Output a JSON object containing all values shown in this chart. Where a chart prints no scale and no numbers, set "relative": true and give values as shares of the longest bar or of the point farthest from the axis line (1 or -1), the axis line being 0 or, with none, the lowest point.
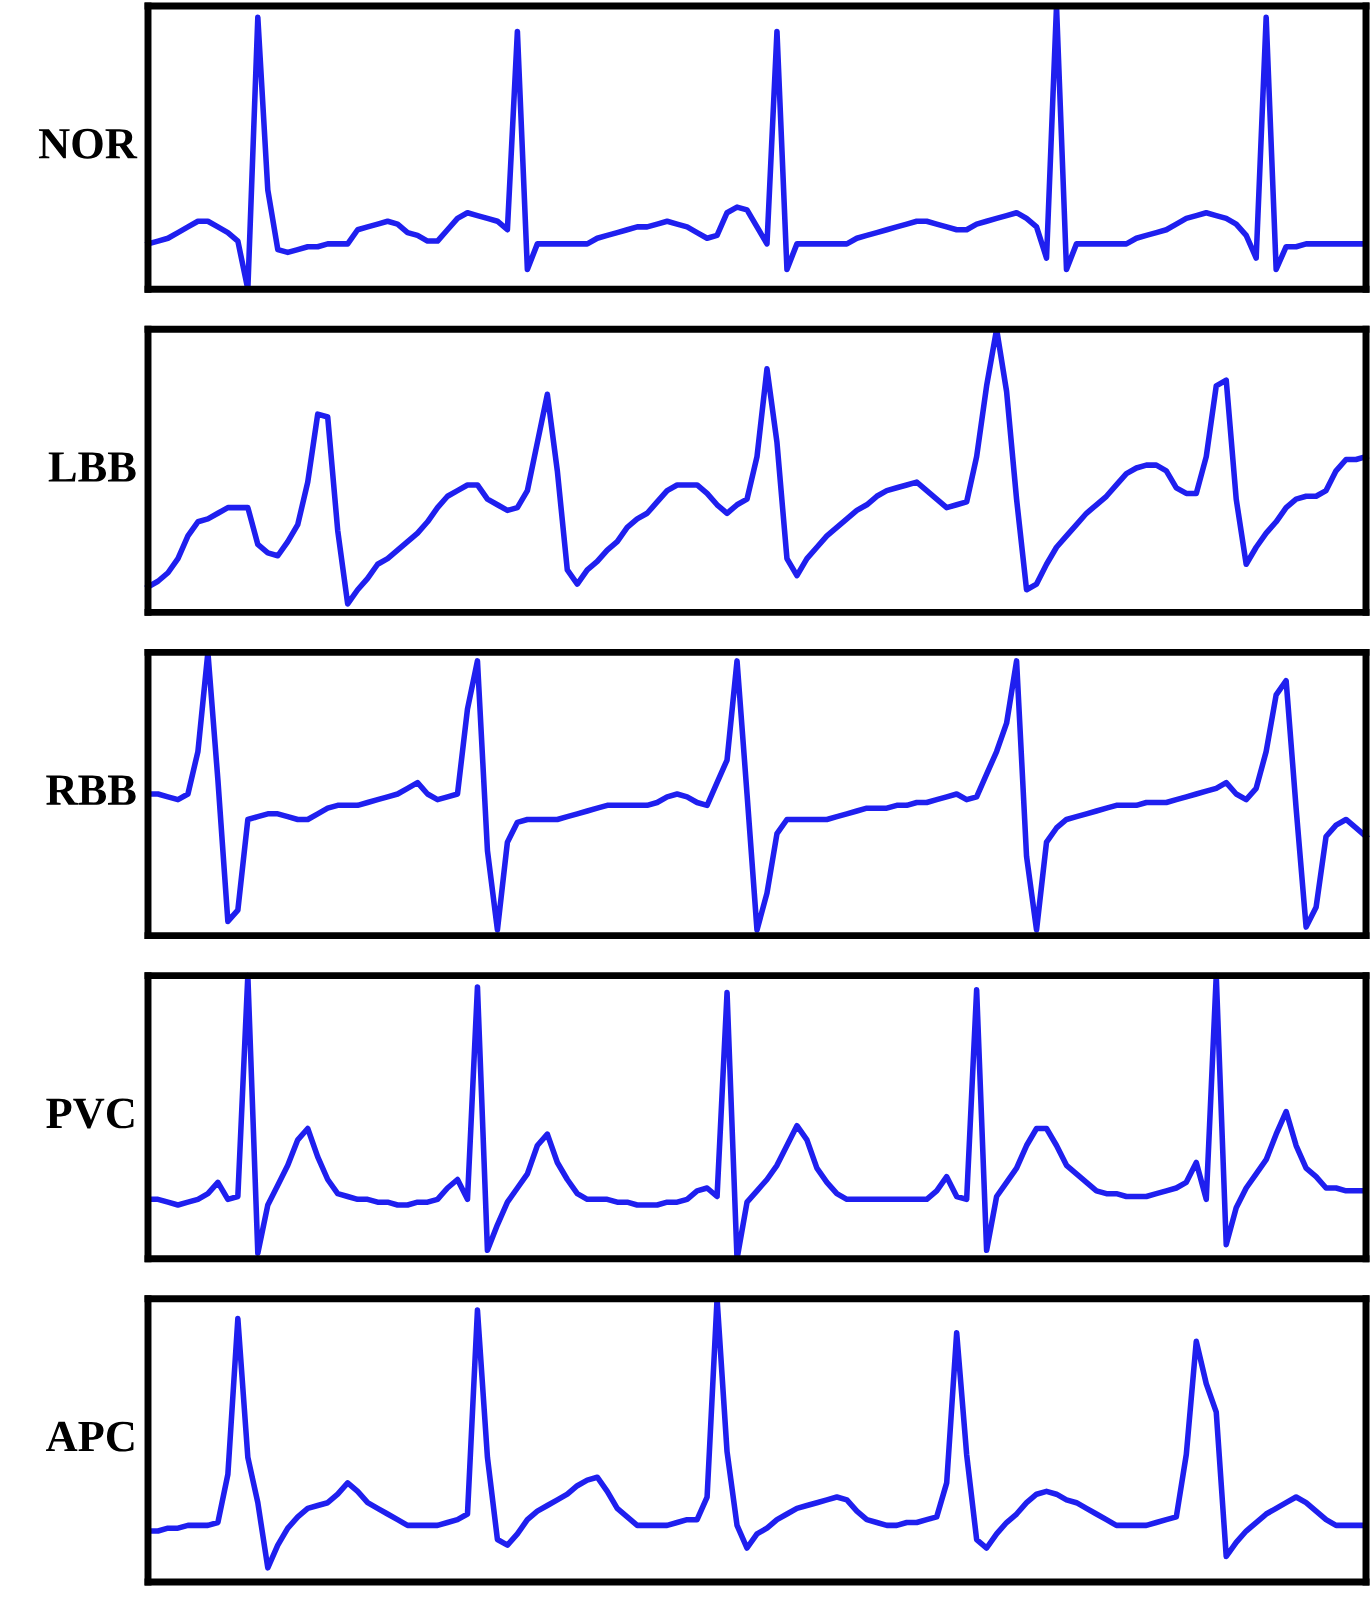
{
  "chart_data": [
    {
      "type": "line",
      "relative": true,
      "ylabel": "NOR",
      "categories": [
        null,
        null,
        null,
        null,
        null,
        null,
        null,
        null,
        null,
        null,
        null,
        null,
        null,
        null,
        null,
        null,
        null,
        null,
        null,
        null,
        null,
        null,
        null,
        null,
        null,
        null,
        null,
        null,
        null,
        null,
        null,
        null,
        null,
        null,
        null,
        null,
        null,
        null,
        null,
        null,
        null,
        null,
        null,
        null,
        null,
        null,
        null,
        null,
        null,
        null,
        null,
        null,
        null,
        null,
        null,
        null,
        null,
        null,
        null,
        null,
        null,
        null,
        null,
        null,
        null,
        null,
        null,
        null,
        null,
        null,
        null,
        null,
        null,
        null,
        null,
        null,
        null,
        null,
        null,
        null,
        null,
        null,
        null,
        null,
        null,
        null,
        null,
        null,
        null,
        null,
        null,
        null,
        null,
        null,
        null,
        null,
        null,
        null,
        null,
        null,
        null,
        null,
        null,
        null,
        null,
        null,
        null,
        null,
        null,
        null,
        null,
        null,
        null,
        null,
        null,
        null,
        null,
        null,
        null,
        null,
        null,
        null,
        null
      ],
      "series": [
        {
          "color": "#1f1fef",
          "values": [
            0.16,
            0.17,
            0.18,
            0.2,
            0.22,
            0.24,
            0.24,
            0.22,
            0.2,
            0.17,
            0,
            0.96,
            0.35,
            0.14,
            0.13,
            0.14,
            0.15,
            0.15,
            0.16,
            0.16,
            0.16,
            0.21,
            0.22,
            0.23,
            0.24,
            0.23,
            0.2,
            0.19,
            0.17,
            0.17,
            0.21,
            0.25,
            0.27,
            0.26,
            0.25,
            0.24,
            0.21,
            0.91,
            0.07,
            0.16,
            0.16,
            0.16,
            0.16,
            0.16,
            0.16,
            0.18,
            0.19,
            0.2,
            0.21,
            0.22,
            0.22,
            0.23,
            0.24,
            0.23,
            0.22,
            0.2,
            0.18,
            0.19,
            0.27,
            0.29,
            0.28,
            0.22,
            0.16,
            0.91,
            0.07,
            0.16,
            0.16,
            0.16,
            0.16,
            0.16,
            0.16,
            0.18,
            0.19,
            0.2,
            0.21,
            0.22,
            0.23,
            0.24,
            0.24,
            0.23,
            0.22,
            0.21,
            0.21,
            0.23,
            0.24,
            0.25,
            0.26,
            0.27,
            0.25,
            0.22,
            0.11,
            1,
            0.07,
            0.16,
            0.16,
            0.16,
            0.16,
            0.16,
            0.16,
            0.18,
            0.19,
            0.2,
            0.21,
            0.23,
            0.25,
            0.26,
            0.27,
            0.26,
            0.25,
            0.23,
            0.19,
            0.11,
            0.96,
            0.07,
            0.15,
            0.15,
            0.16,
            0.16,
            0.16,
            0.16,
            0.16,
            0.16,
            0.16
          ]
        }
      ]
    },
    {
      "type": "line",
      "relative": true,
      "ylabel": "LBB",
      "categories": [
        null,
        null,
        null,
        null,
        null,
        null,
        null,
        null,
        null,
        null,
        null,
        null,
        null,
        null,
        null,
        null,
        null,
        null,
        null,
        null,
        null,
        null,
        null,
        null,
        null,
        null,
        null,
        null,
        null,
        null,
        null,
        null,
        null,
        null,
        null,
        null,
        null,
        null,
        null,
        null,
        null,
        null,
        null,
        null,
        null,
        null,
        null,
        null,
        null,
        null,
        null,
        null,
        null,
        null,
        null,
        null,
        null,
        null,
        null,
        null,
        null,
        null,
        null,
        null,
        null,
        null,
        null,
        null,
        null,
        null,
        null,
        null,
        null,
        null,
        null,
        null,
        null,
        null,
        null,
        null,
        null,
        null,
        null,
        null,
        null,
        null,
        null,
        null,
        null,
        null,
        null,
        null,
        null,
        null,
        null,
        null,
        null,
        null,
        null,
        null,
        null,
        null,
        null,
        null,
        null,
        null,
        null,
        null,
        null,
        null,
        null,
        null,
        null,
        null,
        null,
        null,
        null,
        null,
        null,
        null,
        null,
        null,
        null
      ],
      "series": [
        {
          "color": "#1f1fef",
          "values": [
            0.09,
            0.11,
            0.14,
            0.19,
            0.27,
            0.32,
            0.33,
            0.35,
            0.37,
            0.37,
            0.37,
            0.24,
            0.21,
            0.2,
            0.25,
            0.31,
            0.46,
            0.7,
            0.69,
            0.29,
            0.03,
            0.08,
            0.12,
            0.17,
            0.19,
            0.22,
            0.25,
            0.28,
            0.32,
            0.37,
            0.41,
            0.43,
            0.45,
            0.45,
            0.4,
            0.38,
            0.36,
            0.37,
            0.43,
            0.6,
            0.77,
            0.5,
            0.15,
            0.1,
            0.15,
            0.18,
            0.22,
            0.25,
            0.3,
            0.33,
            0.35,
            0.39,
            0.43,
            0.45,
            0.45,
            0.45,
            0.42,
            0.38,
            0.35,
            0.38,
            0.4,
            0.55,
            0.86,
            0.6,
            0.19,
            0.13,
            0.19,
            0.23,
            0.27,
            0.3,
            0.33,
            0.36,
            0.38,
            0.41,
            0.43,
            0.44,
            0.45,
            0.46,
            0.43,
            0.4,
            0.37,
            0.38,
            0.39,
            0.55,
            0.8,
            1,
            0.78,
            0.4,
            0.08,
            0.1,
            0.17,
            0.23,
            0.27,
            0.31,
            0.35,
            0.38,
            0.41,
            0.45,
            0.49,
            0.51,
            0.52,
            0.52,
            0.5,
            0.44,
            0.42,
            0.42,
            0.55,
            0.8,
            0.82,
            0.4,
            0.17,
            0.23,
            0.28,
            0.32,
            0.37,
            0.4,
            0.41,
            0.41,
            0.43,
            0.5,
            0.54,
            0.54,
            0.55
          ]
        }
      ]
    },
    {
      "type": "line",
      "relative": true,
      "ylabel": "RBB",
      "categories": [
        null,
        null,
        null,
        null,
        null,
        null,
        null,
        null,
        null,
        null,
        null,
        null,
        null,
        null,
        null,
        null,
        null,
        null,
        null,
        null,
        null,
        null,
        null,
        null,
        null,
        null,
        null,
        null,
        null,
        null,
        null,
        null,
        null,
        null,
        null,
        null,
        null,
        null,
        null,
        null,
        null,
        null,
        null,
        null,
        null,
        null,
        null,
        null,
        null,
        null,
        null,
        null,
        null,
        null,
        null,
        null,
        null,
        null,
        null,
        null,
        null,
        null,
        null,
        null,
        null,
        null,
        null,
        null,
        null,
        null,
        null,
        null,
        null,
        null,
        null,
        null,
        null,
        null,
        null,
        null,
        null,
        null,
        null,
        null,
        null,
        null,
        null,
        null,
        null,
        null,
        null,
        null,
        null,
        null,
        null,
        null,
        null,
        null,
        null,
        null,
        null,
        null,
        null,
        null,
        null,
        null,
        null,
        null,
        null,
        null,
        null,
        null,
        null,
        null,
        null,
        null,
        null,
        null,
        null,
        null,
        null,
        null,
        null
      ],
      "series": [
        {
          "color": "#1f1fef",
          "values": [
            0.5,
            0.5,
            0.49,
            0.48,
            0.5,
            0.65,
            1,
            0.55,
            0.05,
            0.09,
            0.41,
            0.42,
            0.43,
            0.43,
            0.42,
            0.41,
            0.41,
            0.43,
            0.45,
            0.46,
            0.46,
            0.46,
            0.47,
            0.48,
            0.49,
            0.5,
            0.52,
            0.54,
            0.5,
            0.48,
            0.49,
            0.5,
            0.8,
            0.97,
            0.3,
            0.02,
            0.33,
            0.4,
            0.41,
            0.41,
            0.41,
            0.41,
            0.42,
            0.43,
            0.44,
            0.45,
            0.46,
            0.46,
            0.46,
            0.46,
            0.46,
            0.47,
            0.49,
            0.5,
            0.49,
            0.47,
            0.46,
            0.54,
            0.62,
            0.97,
            0.5,
            0.02,
            0.15,
            0.36,
            0.41,
            0.41,
            0.41,
            0.41,
            0.41,
            0.42,
            0.43,
            0.44,
            0.45,
            0.45,
            0.45,
            0.46,
            0.46,
            0.47,
            0.47,
            0.48,
            0.49,
            0.5,
            0.48,
            0.49,
            0.57,
            0.65,
            0.75,
            0.97,
            0.28,
            0.02,
            0.33,
            0.38,
            0.41,
            0.42,
            0.43,
            0.44,
            0.45,
            0.46,
            0.46,
            0.46,
            0.47,
            0.47,
            0.47,
            0.48,
            0.49,
            0.5,
            0.51,
            0.52,
            0.54,
            0.5,
            0.48,
            0.52,
            0.65,
            0.85,
            0.9,
            0.45,
            0.03,
            0.1,
            0.35,
            0.39,
            0.41,
            0.38,
            0.35
          ]
        }
      ]
    },
    {
      "type": "line",
      "relative": true,
      "ylabel": "PVC",
      "categories": [
        null,
        null,
        null,
        null,
        null,
        null,
        null,
        null,
        null,
        null,
        null,
        null,
        null,
        null,
        null,
        null,
        null,
        null,
        null,
        null,
        null,
        null,
        null,
        null,
        null,
        null,
        null,
        null,
        null,
        null,
        null,
        null,
        null,
        null,
        null,
        null,
        null,
        null,
        null,
        null,
        null,
        null,
        null,
        null,
        null,
        null,
        null,
        null,
        null,
        null,
        null,
        null,
        null,
        null,
        null,
        null,
        null,
        null,
        null,
        null,
        null,
        null,
        null,
        null,
        null,
        null,
        null,
        null,
        null,
        null,
        null,
        null,
        null,
        null,
        null,
        null,
        null,
        null,
        null,
        null,
        null,
        null,
        null,
        null,
        null,
        null,
        null,
        null,
        null,
        null,
        null,
        null,
        null,
        null,
        null,
        null,
        null,
        null,
        null,
        null,
        null,
        null,
        null,
        null,
        null,
        null,
        null,
        null,
        null,
        null,
        null,
        null,
        null,
        null,
        null,
        null,
        null,
        null,
        null,
        null,
        null,
        null,
        null
      ],
      "series": [
        {
          "color": "#1f1fef",
          "values": [
            0.21,
            0.21,
            0.2,
            0.19,
            0.2,
            0.21,
            0.23,
            0.27,
            0.21,
            0.22,
            1,
            0.02,
            0.19,
            0.26,
            0.33,
            0.42,
            0.46,
            0.36,
            0.28,
            0.23,
            0.22,
            0.21,
            0.21,
            0.2,
            0.2,
            0.19,
            0.19,
            0.2,
            0.2,
            0.21,
            0.25,
            0.28,
            0.21,
            0.96,
            0.03,
            0.12,
            0.2,
            0.25,
            0.3,
            0.4,
            0.44,
            0.34,
            0.28,
            0.23,
            0.21,
            0.21,
            0.21,
            0.2,
            0.2,
            0.19,
            0.19,
            0.19,
            0.2,
            0.2,
            0.21,
            0.24,
            0.25,
            0.22,
            0.94,
            0,
            0.2,
            0.24,
            0.28,
            0.33,
            0.4,
            0.47,
            0.42,
            0.32,
            0.27,
            0.23,
            0.21,
            0.21,
            0.21,
            0.21,
            0.21,
            0.21,
            0.21,
            0.21,
            0.21,
            0.24,
            0.29,
            0.22,
            0.21,
            0.95,
            0.03,
            0.22,
            0.27,
            0.32,
            0.4,
            0.46,
            0.46,
            0.4,
            0.33,
            0.3,
            0.27,
            0.24,
            0.23,
            0.23,
            0.22,
            0.22,
            0.22,
            0.23,
            0.24,
            0.25,
            0.27,
            0.34,
            0.21,
            1,
            0.05,
            0.18,
            0.25,
            0.3,
            0.35,
            0.44,
            0.52,
            0.4,
            0.32,
            0.29,
            0.25,
            0.25,
            0.24,
            0.24,
            0.24
          ]
        }
      ]
    },
    {
      "type": "line",
      "relative": true,
      "ylabel": "APC",
      "categories": [
        null,
        null,
        null,
        null,
        null,
        null,
        null,
        null,
        null,
        null,
        null,
        null,
        null,
        null,
        null,
        null,
        null,
        null,
        null,
        null,
        null,
        null,
        null,
        null,
        null,
        null,
        null,
        null,
        null,
        null,
        null,
        null,
        null,
        null,
        null,
        null,
        null,
        null,
        null,
        null,
        null,
        null,
        null,
        null,
        null,
        null,
        null,
        null,
        null,
        null,
        null,
        null,
        null,
        null,
        null,
        null,
        null,
        null,
        null,
        null,
        null,
        null,
        null,
        null,
        null,
        null,
        null,
        null,
        null,
        null,
        null,
        null,
        null,
        null,
        null,
        null,
        null,
        null,
        null,
        null,
        null,
        null,
        null,
        null,
        null,
        null,
        null,
        null,
        null,
        null,
        null,
        null,
        null,
        null,
        null,
        null,
        null,
        null,
        null,
        null,
        null,
        null,
        null,
        null,
        null,
        null,
        null,
        null,
        null,
        null,
        null,
        null,
        null,
        null,
        null,
        null,
        null,
        null,
        null,
        null,
        null,
        null,
        null
      ],
      "series": [
        {
          "color": "#1f1fef",
          "values": [
            0.18,
            0.18,
            0.19,
            0.19,
            0.2,
            0.2,
            0.2,
            0.21,
            0.38,
            0.93,
            0.44,
            0.28,
            0.05,
            0.13,
            0.19,
            0.23,
            0.26,
            0.27,
            0.28,
            0.31,
            0.35,
            0.32,
            0.28,
            0.26,
            0.24,
            0.22,
            0.2,
            0.2,
            0.2,
            0.2,
            0.21,
            0.22,
            0.24,
            0.96,
            0.44,
            0.15,
            0.13,
            0.17,
            0.22,
            0.25,
            0.27,
            0.29,
            0.31,
            0.34,
            0.36,
            0.37,
            0.32,
            0.26,
            0.23,
            0.2,
            0.2,
            0.2,
            0.2,
            0.21,
            0.22,
            0.22,
            0.3,
            1,
            0.46,
            0.2,
            0.12,
            0.17,
            0.19,
            0.22,
            0.24,
            0.26,
            0.27,
            0.28,
            0.29,
            0.3,
            0.29,
            0.25,
            0.22,
            0.21,
            0.2,
            0.2,
            0.21,
            0.21,
            0.22,
            0.23,
            0.35,
            0.88,
            0.45,
            0.15,
            0.12,
            0.17,
            0.21,
            0.24,
            0.28,
            0.31,
            0.32,
            0.31,
            0.29,
            0.28,
            0.26,
            0.24,
            0.22,
            0.2,
            0.2,
            0.2,
            0.2,
            0.21,
            0.22,
            0.23,
            0.45,
            0.85,
            0.7,
            0.6,
            0.09,
            0.14,
            0.18,
            0.21,
            0.24,
            0.26,
            0.28,
            0.3,
            0.28,
            0.25,
            0.22,
            0.2,
            0.2,
            0.2,
            0.2
          ]
        }
      ]
    }
  ]
}
